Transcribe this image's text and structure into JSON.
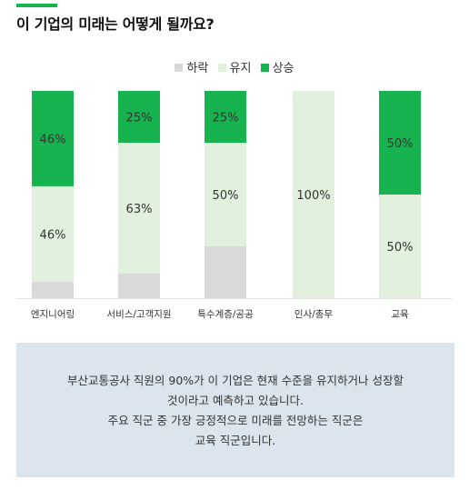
{
  "title": "이 기업의 미래는 어떻게 될까요?",
  "colors": {
    "accent": "#17b34e",
    "down": "#d9d9d9",
    "keep": "#e2f1dd",
    "up": "#17b34e",
    "summary_bg": "#dce5ee"
  },
  "chart_data": {
    "type": "bar",
    "stacked": true,
    "categories": [
      "엔지니어링",
      "서비스/고객지원",
      "특수계층/공공",
      "인사/총무",
      "교육"
    ],
    "series": [
      {
        "name": "하락",
        "values": [
          8,
          12,
          25,
          0,
          0
        ],
        "labels": [
          "",
          "",
          "",
          "",
          ""
        ]
      },
      {
        "name": "유지",
        "values": [
          46,
          63,
          50,
          100,
          50
        ],
        "labels": [
          "46%",
          "63%",
          "50%",
          "100%",
          "50%"
        ]
      },
      {
        "name": "상승",
        "values": [
          46,
          25,
          25,
          0,
          50
        ],
        "labels": [
          "46%",
          "25%",
          "25%",
          "",
          "50%"
        ]
      }
    ],
    "ylim": [
      0,
      100
    ],
    "legend_position": "top-center",
    "grid": false
  },
  "summary": {
    "lines": [
      "부산교통공사 직원의 90%가 이 기업은 현재 수준을 유지하거나 성장할",
      "것이라고 예측하고 있습니다.",
      "주요 직군 중 가장 긍정적으로 미래를 전망하는 직군은",
      "교육 직군입니다."
    ]
  }
}
